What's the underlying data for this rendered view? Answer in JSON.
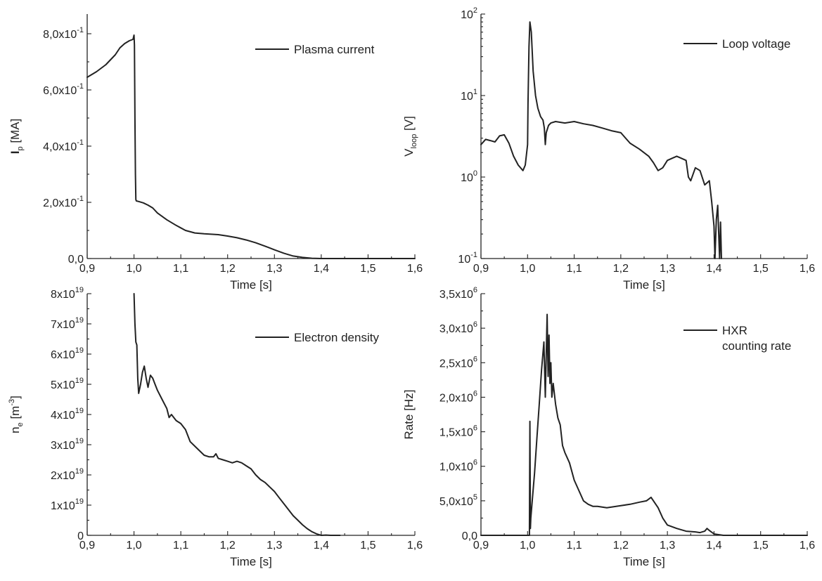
{
  "chart_data": [
    {
      "type": "line",
      "xlabel": "Time [s]",
      "ylabel": {
        "main": "I",
        "sub": "p",
        "unit": " [MA]"
      },
      "xlim": [
        0.9,
        1.6
      ],
      "ylim": [
        0,
        0.87
      ],
      "y_scale": "linear",
      "x_ticks": [
        "0,9",
        "1,0",
        "1,1",
        "1,2",
        "1,3",
        "1,4",
        "1,5",
        "1,6"
      ],
      "y_ticks": [
        {
          "v": 0.0,
          "mant": "0,0",
          "exp": ""
        },
        {
          "v": 0.2,
          "mant": "2,0x10",
          "exp": "-1"
        },
        {
          "v": 0.4,
          "mant": "4,0x10",
          "exp": "-1"
        },
        {
          "v": 0.6,
          "mant": "6,0x10",
          "exp": "-1"
        },
        {
          "v": 0.8,
          "mant": "8,0x10",
          "exp": "-1"
        }
      ],
      "legend": {
        "lines": [
          "Plasma current"
        ],
        "position": "top-right"
      },
      "series": [
        {
          "x": [
            0.9,
            0.92,
            0.94,
            0.96,
            0.97,
            0.98,
            0.99,
            0.998,
            1.0,
            1.001,
            1.002,
            1.003,
            1.004,
            1.005,
            1.01,
            1.02,
            1.03,
            1.04,
            1.05,
            1.07,
            1.09,
            1.11,
            1.13,
            1.15,
            1.18,
            1.2,
            1.22,
            1.24,
            1.26,
            1.28,
            1.3,
            1.32,
            1.34,
            1.36,
            1.38,
            1.4,
            1.45,
            1.5,
            1.55,
            1.6
          ],
          "y": [
            0.645,
            0.665,
            0.69,
            0.725,
            0.75,
            0.765,
            0.775,
            0.78,
            0.795,
            0.76,
            0.5,
            0.3,
            0.21,
            0.205,
            0.203,
            0.198,
            0.19,
            0.18,
            0.162,
            0.138,
            0.118,
            0.1,
            0.091,
            0.088,
            0.085,
            0.08,
            0.074,
            0.066,
            0.056,
            0.044,
            0.031,
            0.019,
            0.009,
            0.004,
            0.001,
            0.0,
            0.0,
            0.0,
            0.0,
            0.0
          ]
        }
      ]
    },
    {
      "type": "line",
      "xlabel": "Time [s]",
      "ylabel": {
        "main": "V",
        "sub": "loop",
        "unit": " [V]"
      },
      "xlim": [
        0.9,
        1.6
      ],
      "ylim": [
        0.1,
        100
      ],
      "y_scale": "log",
      "x_ticks": [
        "0,9",
        "1,0",
        "1,1",
        "1,2",
        "1,3",
        "1,4",
        "1,5",
        "1,6"
      ],
      "y_ticks": [
        {
          "v": 0.1,
          "mant": "10",
          "exp": "-1"
        },
        {
          "v": 1,
          "mant": "10",
          "exp": "0"
        },
        {
          "v": 10,
          "mant": "10",
          "exp": "1"
        },
        {
          "v": 100,
          "mant": "10",
          "exp": "2"
        }
      ],
      "legend": {
        "lines": [
          "Loop voltage"
        ],
        "position": "top-right"
      },
      "series": [
        {
          "x": [
            0.9,
            0.91,
            0.92,
            0.93,
            0.94,
            0.95,
            0.96,
            0.97,
            0.98,
            0.99,
            0.995,
            1.0,
            1.001,
            1.003,
            1.005,
            1.008,
            1.012,
            1.017,
            1.022,
            1.028,
            1.033,
            1.036,
            1.038,
            1.04,
            1.045,
            1.05,
            1.06,
            1.08,
            1.1,
            1.12,
            1.14,
            1.16,
            1.18,
            1.2,
            1.22,
            1.24,
            1.26,
            1.27,
            1.28,
            1.29,
            1.3,
            1.31,
            1.32,
            1.33,
            1.34,
            1.345,
            1.35,
            1.36,
            1.37,
            1.38,
            1.39,
            1.395,
            1.4,
            1.402,
            1.405,
            1.408,
            1.41,
            1.412,
            1.414,
            1.416
          ],
          "y": [
            2.5,
            2.9,
            2.8,
            2.7,
            3.2,
            3.3,
            2.6,
            1.8,
            1.4,
            1.2,
            1.4,
            2.5,
            8,
            40,
            80,
            60,
            20,
            10,
            7,
            5.5,
            5,
            4,
            2.5,
            3.5,
            4.3,
            4.6,
            4.8,
            4.6,
            4.8,
            4.5,
            4.3,
            4.0,
            3.7,
            3.5,
            2.6,
            2.2,
            1.8,
            1.5,
            1.2,
            1.3,
            1.6,
            1.7,
            1.8,
            1.7,
            1.6,
            1.0,
            0.9,
            1.3,
            1.2,
            0.8,
            0.9,
            0.5,
            0.25,
            0.1,
            0.3,
            0.45,
            0.2,
            0.1,
            0.28,
            0.1
          ]
        }
      ]
    },
    {
      "type": "line",
      "xlabel": "Time [s]",
      "ylabel": {
        "main": "n",
        "sub": "e",
        "unit": " [m",
        "unit_sup": "-3",
        "unit_end": "]"
      },
      "xlim": [
        0.9,
        1.6
      ],
      "ylim": [
        0,
        8e+19
      ],
      "y_scale": "linear",
      "x_ticks": [
        "0,9",
        "1,0",
        "1,1",
        "1,2",
        "1,3",
        "1,4",
        "1,5",
        "1,6"
      ],
      "y_ticks": [
        {
          "v": 0,
          "mant": "0",
          "exp": ""
        },
        {
          "v": 1e+19,
          "mant": "1x10",
          "exp": "19"
        },
        {
          "v": 2e+19,
          "mant": "2x10",
          "exp": "19"
        },
        {
          "v": 3e+19,
          "mant": "3x10",
          "exp": "19"
        },
        {
          "v": 4e+19,
          "mant": "4x10",
          "exp": "19"
        },
        {
          "v": 5e+19,
          "mant": "5x10",
          "exp": "19"
        },
        {
          "v": 6e+19,
          "mant": "6x10",
          "exp": "19"
        },
        {
          "v": 7e+19,
          "mant": "7x10",
          "exp": "19"
        },
        {
          "v": 8e+19,
          "mant": "8x10",
          "exp": "19"
        }
      ],
      "legend": {
        "lines": [
          "Electron density"
        ],
        "position": "top-right"
      },
      "series": [
        {
          "x": [
            1.0,
            1.002,
            1.004,
            1.006,
            1.008,
            1.01,
            1.014,
            1.018,
            1.022,
            1.026,
            1.03,
            1.035,
            1.04,
            1.045,
            1.05,
            1.06,
            1.07,
            1.075,
            1.08,
            1.09,
            1.1,
            1.11,
            1.12,
            1.13,
            1.14,
            1.15,
            1.16,
            1.17,
            1.175,
            1.18,
            1.19,
            1.2,
            1.21,
            1.22,
            1.23,
            1.24,
            1.25,
            1.26,
            1.27,
            1.28,
            1.29,
            1.3,
            1.31,
            1.32,
            1.33,
            1.34,
            1.35,
            1.36,
            1.37,
            1.38,
            1.39,
            1.4,
            1.41,
            1.42,
            1.43,
            1.44
          ],
          "y": [
            8e+19,
            7e+19,
            6.4e+19,
            6.3e+19,
            5.2e+19,
            4.7e+19,
            5e+19,
            5.4e+19,
            5.6e+19,
            5.2e+19,
            4.9e+19,
            5.3e+19,
            5.2e+19,
            5e+19,
            4.8e+19,
            4.5e+19,
            4.2e+19,
            3.9e+19,
            4e+19,
            3.8e+19,
            3.7e+19,
            3.5e+19,
            3.1e+19,
            2.95e+19,
            2.8e+19,
            2.65e+19,
            2.6e+19,
            2.6e+19,
            2.7e+19,
            2.55e+19,
            2.5e+19,
            2.45e+19,
            2.4e+19,
            2.45e+19,
            2.4e+19,
            2.3e+19,
            2.2e+19,
            2e+19,
            1.85e+19,
            1.75e+19,
            1.6e+19,
            1.45e+19,
            1.25e+19,
            1.05e+19,
            8.5e+18,
            6.5e+18,
            5e+18,
            3.5e+18,
            2.2e+18,
            1.2e+18,
            5e+17,
            0.0,
            1e+17,
            0.0,
            0.0,
            0.0
          ]
        }
      ]
    },
    {
      "type": "line",
      "xlabel": "Time [s]",
      "ylabel": {
        "main": "Rate [Hz]",
        "sub": "",
        "unit": ""
      },
      "xlim": [
        0.9,
        1.6
      ],
      "ylim": [
        0,
        3500000.0
      ],
      "y_scale": "linear",
      "x_ticks": [
        "0,9",
        "1,0",
        "1,1",
        "1,2",
        "1,3",
        "1,4",
        "1,5",
        "1,6"
      ],
      "y_ticks": [
        {
          "v": 0,
          "mant": "0,0",
          "exp": ""
        },
        {
          "v": 500000.0,
          "mant": "5,0x10",
          "exp": "5"
        },
        {
          "v": 1000000.0,
          "mant": "1,0x10",
          "exp": "6"
        },
        {
          "v": 1500000.0,
          "mant": "1,5x10",
          "exp": "6"
        },
        {
          "v": 2000000.0,
          "mant": "2,0x10",
          "exp": "6"
        },
        {
          "v": 2500000.0,
          "mant": "2,5x10",
          "exp": "6"
        },
        {
          "v": 3000000.0,
          "mant": "3,0x10",
          "exp": "6"
        },
        {
          "v": 3500000.0,
          "mant": "3,5x10",
          "exp": "6"
        }
      ],
      "legend": {
        "lines": [
          "HXR",
          "counting rate"
        ],
        "position": "top-right"
      },
      "series": [
        {
          "x": [
            0.9,
            0.95,
            1.0,
            1.004,
            1.005,
            1.006,
            1.007,
            1.01,
            1.015,
            1.02,
            1.025,
            1.03,
            1.035,
            1.038,
            1.04,
            1.042,
            1.044,
            1.046,
            1.048,
            1.05,
            1.052,
            1.055,
            1.06,
            1.065,
            1.07,
            1.075,
            1.08,
            1.09,
            1.1,
            1.11,
            1.12,
            1.13,
            1.14,
            1.15,
            1.17,
            1.2,
            1.22,
            1.24,
            1.255,
            1.265,
            1.28,
            1.29,
            1.3,
            1.32,
            1.34,
            1.36,
            1.37,
            1.38,
            1.385,
            1.39,
            1.4,
            1.42,
            1.45,
            1.5,
            1.55,
            1.6
          ],
          "y": [
            0,
            0,
            0,
            0,
            1650000.0,
            100000.0,
            250000.0,
            500000.0,
            900000.0,
            1400000.0,
            1900000.0,
            2400000.0,
            2800000.0,
            2000000.0,
            2600000.0,
            3200000.0,
            2300000.0,
            2900000.0,
            2200000.0,
            2500000.0,
            2000000.0,
            2200000.0,
            1900000.0,
            1700000.0,
            1600000.0,
            1300000.0,
            1200000.0,
            1050000.0,
            800000.0,
            650000.0,
            500000.0,
            450000.0,
            420000.0,
            420000.0,
            400000.0,
            430000.0,
            450000.0,
            480000.0,
            500000.0,
            550000.0,
            400000.0,
            250000.0,
            150000.0,
            100000.0,
            60000.0,
            50000.0,
            40000.0,
            60000.0,
            100000.0,
            70000.0,
            20000.0,
            0,
            0,
            0,
            0,
            0
          ]
        }
      ]
    }
  ]
}
